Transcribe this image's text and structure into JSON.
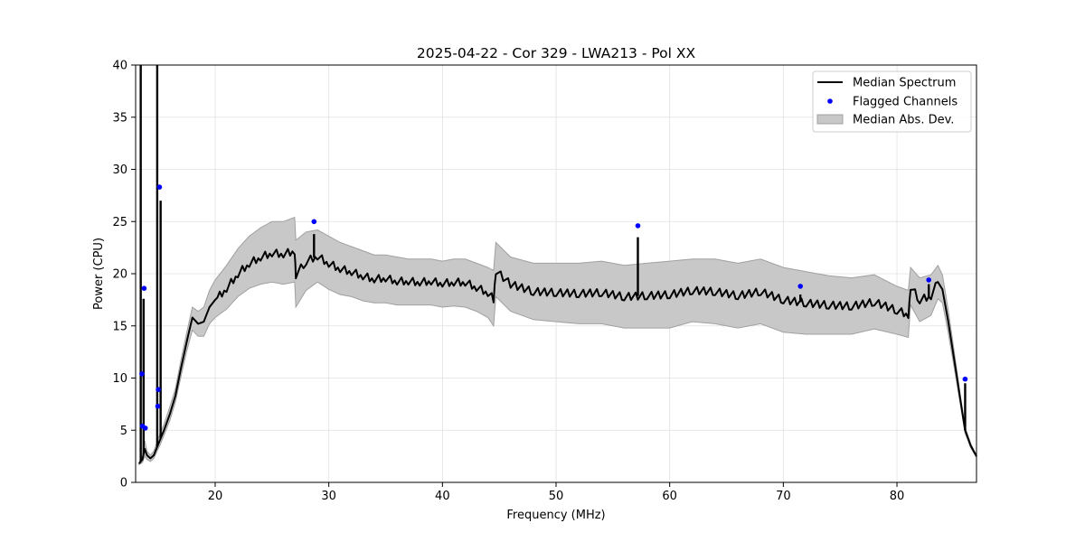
{
  "chart_data": {
    "type": "line",
    "title": "2025-04-22 - Cor 329 - LWA213 - Pol XX",
    "xlabel": "Frequency (MHz)",
    "ylabel": "Power (CPU)",
    "xlim": [
      13,
      87
    ],
    "ylim": [
      0,
      40
    ],
    "xticks": [
      20,
      30,
      40,
      50,
      60,
      70,
      80
    ],
    "yticks": [
      0,
      5,
      10,
      15,
      20,
      25,
      30,
      35,
      40
    ],
    "grid": true,
    "legend_position": "top-right",
    "colors": {
      "median": "#000000",
      "flagged": "#0000ff",
      "band_fill": "#c8c8c8",
      "band_edge": "#a0a0a0",
      "grid": "#e0e0e0"
    },
    "legend": [
      {
        "label": "Median Spectrum",
        "kind": "line"
      },
      {
        "label": "Flagged Channels",
        "kind": "dot"
      },
      {
        "label": "Median Abs. Dev.",
        "kind": "patch"
      }
    ],
    "median_spectrum": {
      "x": [
        13.3,
        13.6,
        13.8,
        14.0,
        14.3,
        14.6,
        15.2,
        15.5,
        16.0,
        16.5,
        17.0,
        17.5,
        18.0,
        18.5,
        19.0,
        19.5,
        20.0,
        21.0,
        22.0,
        23.0,
        24.0,
        25.0,
        26.0,
        27.0,
        27.1,
        28.0,
        29.0,
        30.0,
        31.0,
        32.0,
        33.0,
        34.0,
        35.0,
        36.0,
        37.0,
        38.0,
        39.0,
        40.0,
        41.0,
        42.0,
        43.0,
        44.0,
        44.5,
        44.7,
        46.0,
        48.0,
        50.0,
        52.0,
        54.0,
        56.0,
        58.0,
        60.0,
        62.0,
        64.0,
        66.0,
        68.0,
        70.0,
        72.0,
        74.0,
        76.0,
        78.0,
        80.0,
        81.0,
        81.2,
        82.0,
        83.0,
        83.6,
        84.0,
        84.5,
        85.0,
        85.5,
        86.0,
        86.5,
        87.0
      ],
      "y": [
        1.8,
        2.2,
        3.2,
        2.6,
        2.3,
        2.6,
        4.2,
        5.0,
        6.5,
        8.3,
        11.0,
        13.5,
        15.8,
        15.2,
        15.4,
        16.8,
        17.5,
        18.6,
        20.0,
        21.0,
        21.6,
        22.0,
        21.9,
        22.2,
        19.9,
        21.2,
        21.7,
        21.0,
        20.5,
        20.2,
        19.8,
        19.5,
        19.6,
        19.3,
        19.3,
        19.2,
        19.3,
        19.1,
        19.2,
        19.2,
        18.7,
        18.2,
        17.6,
        20.3,
        19.0,
        18.3,
        18.2,
        18.1,
        18.2,
        17.8,
        17.9,
        18.0,
        18.4,
        18.3,
        17.9,
        18.3,
        17.5,
        17.2,
        17.0,
        16.9,
        17.3,
        16.5,
        16.1,
        18.8,
        17.5,
        17.9,
        19.2,
        18.5,
        15.5,
        12.0,
        8.5,
        5.0,
        3.5,
        2.5
      ],
      "spikes": [
        {
          "x": 13.45,
          "y": 40
        },
        {
          "x": 13.7,
          "y": 17.6
        },
        {
          "x": 14.9,
          "y": 40
        },
        {
          "x": 15.2,
          "y": 27.0
        },
        {
          "x": 28.7,
          "y": 23.8
        },
        {
          "x": 57.2,
          "y": 23.5
        },
        {
          "x": 71.5,
          "y": 18.0
        },
        {
          "x": 82.8,
          "y": 19.0
        },
        {
          "x": 86.0,
          "y": 9.5
        }
      ]
    },
    "median_abs_dev": {
      "x": [
        13.3,
        13.6,
        13.8,
        14.0,
        14.3,
        14.6,
        15.2,
        15.5,
        16.0,
        16.5,
        17.0,
        17.5,
        18.0,
        18.5,
        19.0,
        19.5,
        20.0,
        21.0,
        22.0,
        23.0,
        24.0,
        25.0,
        26.0,
        27.0,
        27.1,
        28.0,
        29.0,
        30.0,
        31.0,
        32.0,
        33.0,
        34.0,
        35.0,
        36.0,
        37.0,
        38.0,
        39.0,
        40.0,
        41.0,
        42.0,
        43.0,
        44.0,
        44.5,
        44.7,
        46.0,
        48.0,
        50.0,
        52.0,
        54.0,
        56.0,
        58.0,
        60.0,
        62.0,
        64.0,
        66.0,
        68.0,
        70.0,
        72.0,
        74.0,
        76.0,
        78.0,
        80.0,
        81.0,
        81.2,
        82.0,
        83.0,
        83.6,
        84.0,
        84.5,
        85.0,
        85.5,
        86.0,
        86.5,
        87.0
      ],
      "upper": [
        1.9,
        2.6,
        4.0,
        3.0,
        2.6,
        3.0,
        4.8,
        5.6,
        7.2,
        9.0,
        11.8,
        14.4,
        16.8,
        16.4,
        16.8,
        18.4,
        19.4,
        20.8,
        22.4,
        23.6,
        24.4,
        25.0,
        25.0,
        25.4,
        23.2,
        24.0,
        24.2,
        23.6,
        23.0,
        22.6,
        22.2,
        21.8,
        21.8,
        21.6,
        21.4,
        21.4,
        21.4,
        21.2,
        21.4,
        21.4,
        21.0,
        20.6,
        20.3,
        23.0,
        21.6,
        21.0,
        21.0,
        21.0,
        21.2,
        20.8,
        21.0,
        21.2,
        21.4,
        21.4,
        21.0,
        21.4,
        20.6,
        20.2,
        19.8,
        19.6,
        19.9,
        18.8,
        18.4,
        20.6,
        19.6,
        19.9,
        20.8,
        19.9,
        16.6,
        12.8,
        9.0,
        5.3,
        3.7,
        2.6
      ],
      "lower": [
        1.7,
        1.9,
        2.5,
        2.2,
        2.0,
        2.3,
        3.7,
        4.5,
        5.9,
        7.7,
        10.2,
        12.6,
        14.6,
        14.0,
        14.0,
        15.2,
        15.8,
        16.6,
        17.8,
        18.6,
        19.0,
        19.2,
        19.0,
        19.2,
        16.8,
        18.4,
        19.2,
        18.5,
        18.0,
        17.8,
        17.4,
        17.2,
        17.2,
        17.0,
        17.0,
        17.0,
        17.0,
        16.8,
        16.9,
        16.8,
        16.4,
        15.8,
        15.0,
        17.8,
        16.4,
        15.6,
        15.4,
        15.2,
        15.2,
        14.8,
        14.8,
        14.8,
        15.4,
        15.2,
        14.8,
        15.2,
        14.4,
        14.2,
        14.2,
        14.2,
        14.7,
        14.2,
        13.9,
        17.0,
        15.4,
        16.0,
        17.6,
        17.2,
        14.4,
        11.2,
        8.0,
        4.7,
        3.3,
        2.4
      ]
    },
    "flagged_channels": {
      "x": [
        13.55,
        13.6,
        13.75,
        13.85,
        14.95,
        15.0,
        15.1,
        28.7,
        57.2,
        71.5,
        82.8,
        86.0
      ],
      "y": [
        10.4,
        5.4,
        18.6,
        5.2,
        7.3,
        8.9,
        28.3,
        25.0,
        24.6,
        18.8,
        19.4,
        9.9
      ]
    }
  }
}
